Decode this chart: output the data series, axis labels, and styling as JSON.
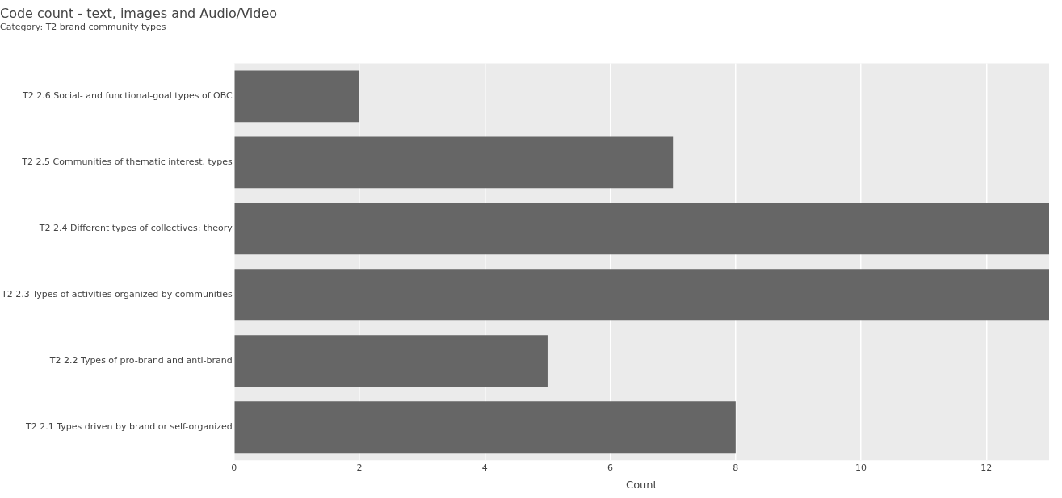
{
  "chart_data": {
    "type": "bar",
    "orientation": "horizontal",
    "title": "Code count - text, images and Audio/Video",
    "subtitle": "Category: T2 brand community types",
    "xlabel": "Count",
    "categories": [
      "T2 2.6 Social- and functional-goal types of OBC",
      "T2 2.5 Communities of thematic interest, types",
      "T2 2.4 Different types of collectives: theory",
      "T2 2.3 Types of activities organized by communities",
      "T2 2.2 Types of pro-brand and anti-brand",
      "T2 2.1 Types driven by brand or self-organized"
    ],
    "values": [
      2,
      7,
      13,
      13,
      5,
      8
    ],
    "color": "#666666",
    "xlim": [
      0,
      13
    ],
    "xticks": [
      0,
      2,
      4,
      6,
      8,
      10,
      12
    ],
    "grid": "x",
    "legend": false
  }
}
